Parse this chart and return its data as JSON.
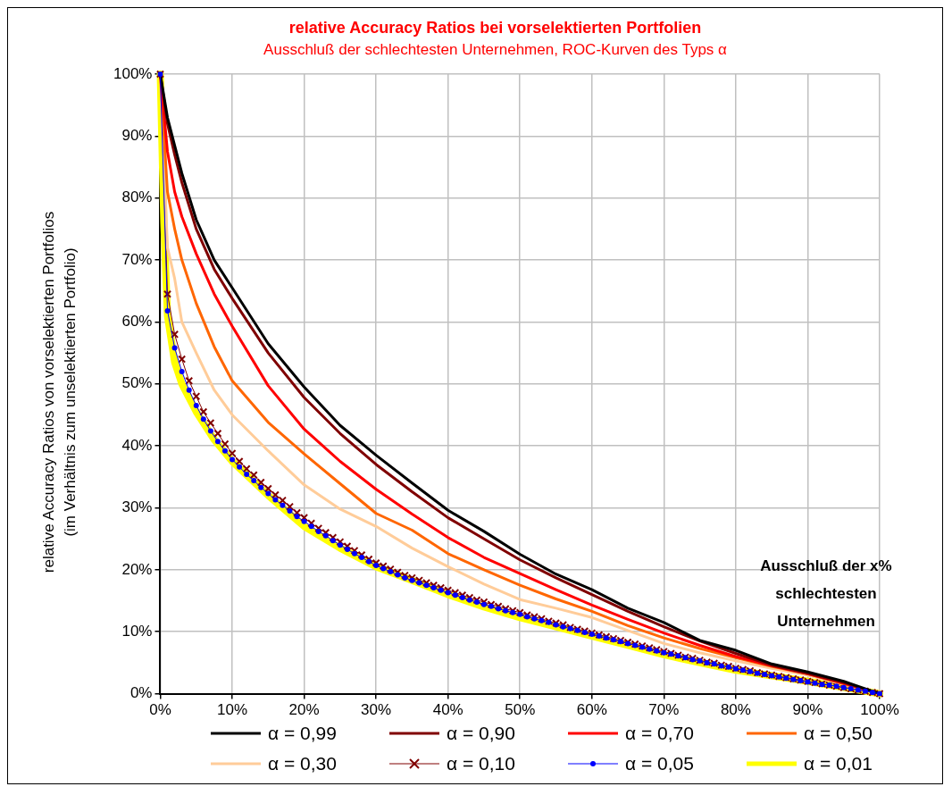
{
  "chart_data": {
    "type": "line",
    "title": "relative Accuracy Ratios bei vorselektierten Portfolien",
    "subtitle": "Ausschluß der schlechtesten Unternehmen, ROC-Kurven des Typs α",
    "xlabel": "Ausschluß der x% schlechtesten Unternehmen",
    "ylabel": "relative Accuracy Ratios von vorselektierten Portfolios\n(im Verhältnis zum unselektierten Portfolio)",
    "xlim": [
      0,
      100
    ],
    "ylim": [
      0,
      100
    ],
    "xticks": [
      {
        "value": 0,
        "label": "0%"
      },
      {
        "value": 10,
        "label": "10%"
      },
      {
        "value": 20,
        "label": "20%"
      },
      {
        "value": 30,
        "label": "30%"
      },
      {
        "value": 40,
        "label": "40%"
      },
      {
        "value": 50,
        "label": "50%"
      },
      {
        "value": 60,
        "label": "60%"
      },
      {
        "value": 70,
        "label": "70%"
      },
      {
        "value": 80,
        "label": "80%"
      },
      {
        "value": 90,
        "label": "90%"
      },
      {
        "value": 100,
        "label": "100%"
      }
    ],
    "yticks": [
      {
        "value": 0,
        "label": "0%"
      },
      {
        "value": 10,
        "label": "10%"
      },
      {
        "value": 20,
        "label": "20%"
      },
      {
        "value": 30,
        "label": "30%"
      },
      {
        "value": 40,
        "label": "40%"
      },
      {
        "value": 50,
        "label": "50%"
      },
      {
        "value": 60,
        "label": "60%"
      },
      {
        "value": 70,
        "label": "70%"
      },
      {
        "value": 80,
        "label": "80%"
      },
      {
        "value": 90,
        "label": "90%"
      },
      {
        "value": 100,
        "label": "100%"
      }
    ],
    "grid": true,
    "legend": "bottom",
    "marker": "none",
    "series": [
      {
        "name": "α = 0,99",
        "color": "#000000",
        "x": [
          0,
          1,
          2,
          3,
          5,
          7.5,
          10,
          15,
          20,
          25,
          30,
          35,
          40,
          45,
          50,
          55,
          60,
          65,
          70,
          75,
          80,
          85,
          90,
          95,
          100
        ],
        "values": [
          100,
          93,
          88.5,
          84,
          76.5,
          70,
          65.5,
          56.5,
          49.5,
          43.3,
          38.5,
          34,
          29.6,
          26.2,
          22.5,
          19.3,
          16.8,
          13.8,
          11.5,
          8.6,
          7,
          4.8,
          3.5,
          2,
          0
        ]
      },
      {
        "name": "α = 0,90",
        "color": "#800000",
        "x": [
          0,
          1,
          2,
          3,
          5,
          7.5,
          10,
          15,
          20,
          25,
          30,
          35,
          40,
          45,
          50,
          55,
          60,
          65,
          70,
          75,
          80,
          85,
          90,
          95,
          100
        ],
        "values": [
          100,
          92,
          87,
          82.5,
          75,
          68.5,
          63.8,
          55,
          47.8,
          42,
          37,
          32.6,
          28.4,
          25,
          21.6,
          18.7,
          16,
          13.3,
          10.8,
          8.5,
          6.5,
          4.6,
          3.3,
          1.8,
          0
        ]
      },
      {
        "name": "α = 0,70",
        "color": "#ff0000",
        "x": [
          0,
          1,
          2,
          3,
          5,
          7.5,
          10,
          15,
          20,
          25,
          30,
          35,
          40,
          45,
          50,
          55,
          60,
          65,
          70,
          75,
          80,
          85,
          90,
          95,
          100
        ],
        "values": [
          100,
          87.5,
          81,
          77,
          71,
          64.5,
          59.3,
          49.7,
          42.7,
          37.5,
          33,
          29,
          25.2,
          22,
          19.4,
          16.8,
          14.3,
          12,
          9.8,
          7.8,
          6,
          4.5,
          3.2,
          1.7,
          0
        ]
      },
      {
        "name": "α = 0,50",
        "color": "#ff6600",
        "x": [
          0,
          1,
          2,
          3,
          5,
          7.5,
          10,
          15,
          20,
          25,
          30,
          35,
          40,
          45,
          50,
          55,
          60,
          65,
          70,
          75,
          80,
          85,
          90,
          95,
          100
        ],
        "values": [
          100,
          81,
          75,
          70,
          63,
          56,
          50.5,
          43.8,
          38.7,
          33.9,
          29.1,
          26.4,
          22.6,
          20,
          17.5,
          15.3,
          13.3,
          11,
          9,
          7.3,
          5.8,
          4.4,
          3.2,
          1.6,
          0
        ]
      },
      {
        "name": "α = 0,30",
        "color": "#ffcc99",
        "x": [
          0,
          1,
          2,
          3,
          5,
          7.5,
          10,
          15,
          20,
          25,
          30,
          35,
          40,
          45,
          50,
          55,
          60,
          65,
          70,
          75,
          80,
          85,
          90,
          95,
          100
        ],
        "values": [
          100,
          72,
          67,
          60,
          55,
          49,
          45,
          39.2,
          33.7,
          29.8,
          27,
          23.5,
          20.5,
          17.7,
          15.2,
          13.8,
          12.3,
          10.2,
          8.1,
          6.6,
          5.3,
          4.1,
          3,
          1.5,
          0
        ]
      },
      {
        "name": "α = 0,10",
        "color": "#800000",
        "marker": "cross",
        "x": [
          0,
          1,
          2,
          3,
          4,
          5,
          6,
          7,
          8,
          9,
          10,
          11,
          12,
          13,
          14,
          15,
          16,
          17,
          18,
          19,
          20,
          21,
          22,
          23,
          24,
          25,
          26,
          27,
          28,
          29,
          30,
          31,
          32,
          33,
          34,
          35,
          36,
          37,
          38,
          39,
          40,
          41,
          42,
          43,
          44,
          45,
          46,
          47,
          48,
          49,
          50,
          51,
          52,
          53,
          54,
          55,
          56,
          57,
          58,
          59,
          60,
          61,
          62,
          63,
          64,
          65,
          66,
          67,
          68,
          69,
          70,
          71,
          72,
          73,
          74,
          75,
          76,
          77,
          78,
          79,
          80,
          81,
          82,
          83,
          84,
          85,
          86,
          87,
          88,
          89,
          90,
          91,
          92,
          93,
          94,
          95,
          96,
          97,
          98,
          99,
          100
        ],
        "values": [
          100,
          64.5,
          58,
          54,
          50.5,
          48,
          45.5,
          43.7,
          42,
          40.3,
          38.8,
          37.5,
          36.3,
          35.3,
          34.1,
          33.1,
          32.1,
          31.2,
          30.2,
          29.2,
          28.4,
          27.5,
          26.7,
          26,
          25.2,
          24.5,
          23.8,
          23.1,
          22.4,
          21.7,
          21.1,
          20.6,
          20.1,
          19.6,
          19.1,
          18.7,
          18.3,
          17.9,
          17.5,
          17.1,
          16.7,
          16.3,
          15.9,
          15.5,
          15.1,
          14.8,
          14.4,
          14.1,
          13.7,
          13.4,
          13.1,
          12.7,
          12.4,
          12.1,
          11.7,
          11.4,
          11.1,
          10.7,
          10.4,
          10.1,
          9.8,
          9.5,
          9.2,
          8.9,
          8.6,
          8.3,
          8,
          7.7,
          7.4,
          7.1,
          6.8,
          6.5,
          6.2,
          5.9,
          5.7,
          5.4,
          5.1,
          4.9,
          4.6,
          4.4,
          4.1,
          3.9,
          3.7,
          3.4,
          3.2,
          3,
          2.8,
          2.6,
          2.4,
          2.2,
          2,
          1.8,
          1.6,
          1.4,
          1.2,
          1,
          0.8,
          0.6,
          0.4,
          0.2,
          0
        ]
      },
      {
        "name": "α = 0,05",
        "color": "#0000ff",
        "marker": "circle",
        "x": [
          0,
          1,
          2,
          3,
          4,
          5,
          6,
          7,
          8,
          9,
          10,
          11,
          12,
          13,
          14,
          15,
          16,
          17,
          18,
          19,
          20,
          21,
          22,
          23,
          24,
          25,
          26,
          27,
          28,
          29,
          30,
          31,
          32,
          33,
          34,
          35,
          36,
          37,
          38,
          39,
          40,
          41,
          42,
          43,
          44,
          45,
          46,
          47,
          48,
          49,
          50,
          51,
          52,
          53,
          54,
          55,
          56,
          57,
          58,
          59,
          60,
          61,
          62,
          63,
          64,
          65,
          66,
          67,
          68,
          69,
          70,
          71,
          72,
          73,
          74,
          75,
          76,
          77,
          78,
          79,
          80,
          81,
          82,
          83,
          84,
          85,
          86,
          87,
          88,
          89,
          90,
          91,
          92,
          93,
          94,
          95,
          96,
          97,
          98,
          99,
          100
        ],
        "values": [
          100,
          61.8,
          55.8,
          52,
          49,
          46.5,
          44.3,
          42.4,
          40.7,
          39.2,
          37.8,
          36.6,
          35.4,
          34.4,
          33.3,
          32.3,
          31.3,
          30.4,
          29.5,
          28.6,
          27.8,
          27,
          26.2,
          25.5,
          24.7,
          24,
          23.3,
          22.6,
          22,
          21.3,
          20.7,
          20.2,
          19.7,
          19.2,
          18.7,
          18.3,
          17.9,
          17.5,
          17.1,
          16.7,
          16.3,
          15.9,
          15.5,
          15.1,
          14.8,
          14.4,
          14.1,
          13.7,
          13.4,
          13.1,
          12.8,
          12.4,
          12.1,
          11.8,
          11.5,
          11.1,
          10.8,
          10.5,
          10.2,
          9.9,
          9.6,
          9.3,
          9,
          8.7,
          8.4,
          8.1,
          7.8,
          7.5,
          7.2,
          6.9,
          6.6,
          6.4,
          6.1,
          5.8,
          5.5,
          5.3,
          5,
          4.8,
          4.5,
          4.3,
          4,
          3.8,
          3.6,
          3.3,
          3.1,
          2.9,
          2.7,
          2.5,
          2.3,
          2.1,
          1.9,
          1.7,
          1.5,
          1.4,
          1.2,
          1,
          0.8,
          0.6,
          0.4,
          0.2,
          0
        ]
      },
      {
        "name": "α = 0,01",
        "color": "#ffff00",
        "x": [
          0,
          0.5,
          1,
          2,
          3,
          5,
          7.5,
          10,
          15,
          20,
          25,
          30,
          35,
          40,
          45,
          50,
          55,
          60,
          65,
          70,
          75,
          80,
          85,
          90,
          95,
          100
        ],
        "values": [
          100,
          76,
          61,
          53.5,
          50,
          45.5,
          41,
          37.5,
          32,
          27,
          23.5,
          20.5,
          18.3,
          16,
          14,
          12.3,
          10.8,
          9.3,
          7.8,
          6.3,
          5,
          3.8,
          2.9,
          2,
          1,
          0
        ]
      }
    ]
  }
}
